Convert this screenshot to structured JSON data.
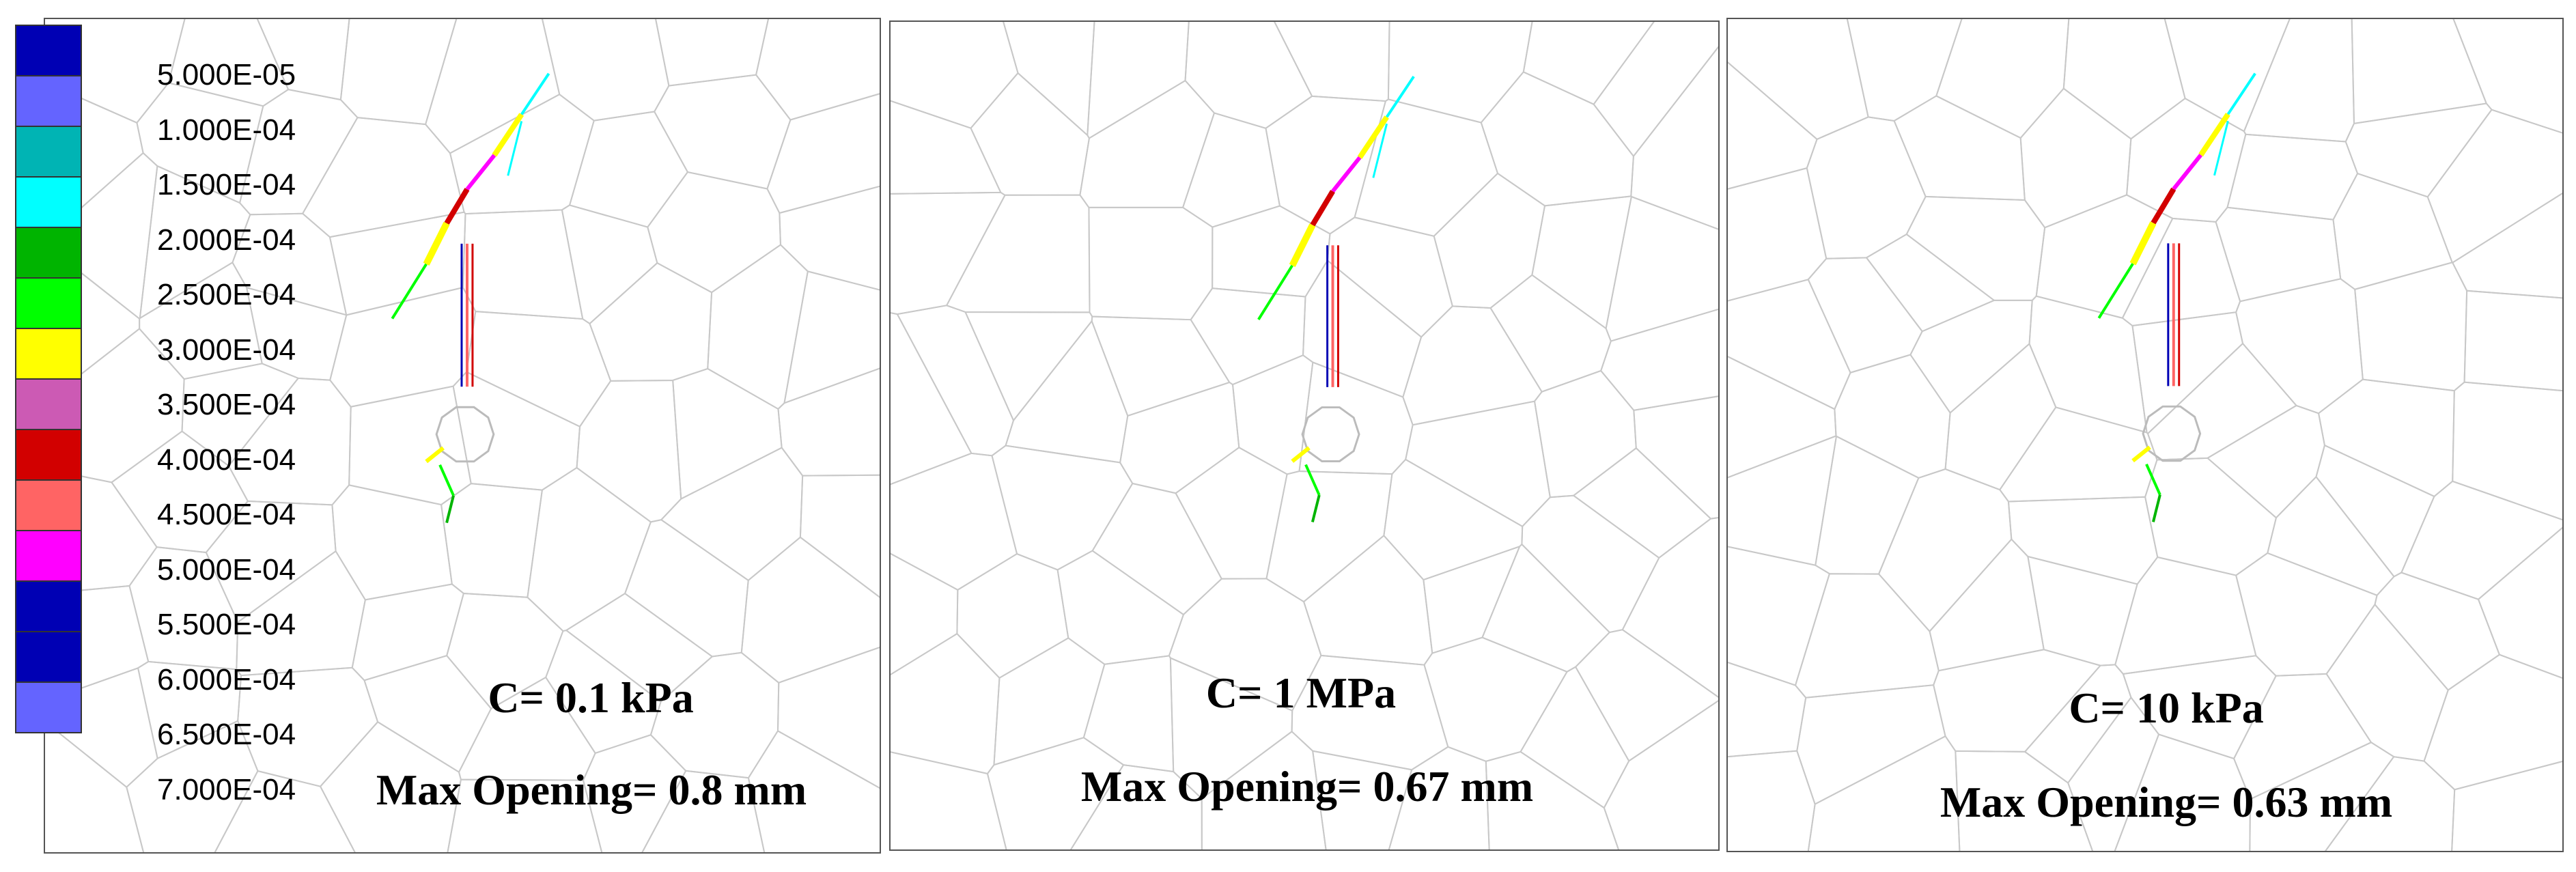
{
  "legend": {
    "labels": [
      "5.000E-05",
      "1.000E-04",
      "1.500E-04",
      "2.000E-04",
      "2.500E-04",
      "3.000E-04",
      "3.500E-04",
      "4.000E-04",
      "4.500E-04",
      "5.000E-04",
      "5.500E-04",
      "6.000E-04",
      "6.500E-04",
      "7.000E-04"
    ],
    "colors": [
      "#0000b4",
      "#6464ff",
      "#00b4b4",
      "#00ffff",
      "#00b400",
      "#00ff00",
      "#ffff00",
      "#cc5ab4",
      "#d20000",
      "#ff6464",
      "#ff00ff",
      "#0000b4",
      "#0000b4",
      "#6464ff"
    ]
  },
  "panels": [
    {
      "cohesion": "C= 0.1 kPa",
      "opening": "Max Opening= 0.8 mm"
    },
    {
      "cohesion": "C= 1 MPa",
      "opening": "Max Opening= 0.67 mm"
    },
    {
      "cohesion": "C= 10 kPa",
      "opening": "Max Opening= 0.63 mm"
    }
  ],
  "colors": {
    "mesh": "#c8c8c8",
    "frame": "#555555"
  }
}
